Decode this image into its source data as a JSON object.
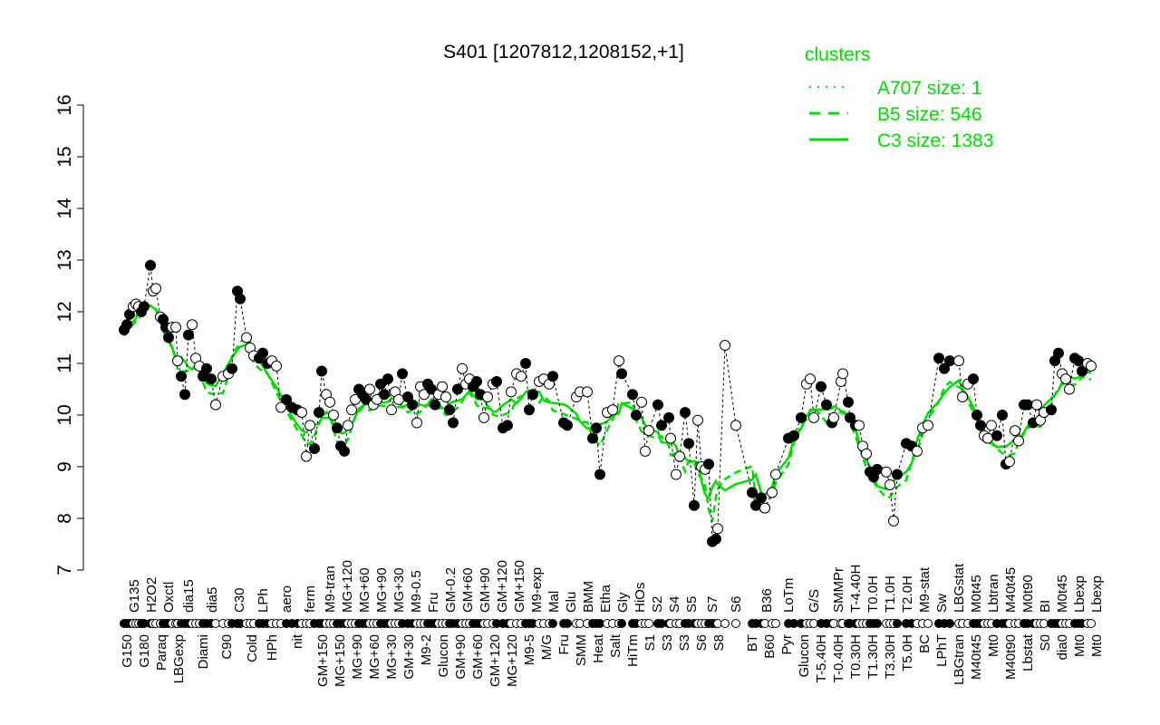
{
  "chart_data": {
    "type": "scatter",
    "title": "S401 [1207812,1208152,+1]",
    "xlabel": "",
    "ylabel": "",
    "ylim": [
      7,
      16
    ],
    "yticks": [
      7,
      8,
      9,
      10,
      11,
      12,
      13,
      14,
      15,
      16
    ],
    "legend": {
      "title": "clusters",
      "placement": "top-right",
      "entries": [
        {
          "label": "A707 size: 1",
          "style": "dotted"
        },
        {
          "label": "B5 size: 546",
          "style": "dashed"
        },
        {
          "label": "C3 size: 1383",
          "style": "solid"
        }
      ]
    },
    "line_color": "#00dd00",
    "xlim": [
      0,
      1080
    ],
    "points": [
      [
        7,
        11.65
      ],
      [
        10,
        11.75
      ],
      [
        13,
        11.95
      ],
      [
        17,
        12.1
      ],
      [
        20,
        12.15
      ],
      [
        23,
        12.1
      ],
      [
        26,
        12.0
      ],
      [
        29,
        12.1
      ],
      [
        36,
        12.9
      ],
      [
        39,
        12.4
      ],
      [
        42,
        12.45
      ],
      [
        47,
        11.9
      ],
      [
        50,
        11.85
      ],
      [
        53,
        11.7
      ],
      [
        56,
        11.5
      ],
      [
        60,
        11.7
      ],
      [
        64,
        11.7
      ],
      [
        66,
        11.05
      ],
      [
        70,
        10.75
      ],
      [
        74,
        10.4
      ],
      [
        78,
        11.55
      ],
      [
        82,
        11.75
      ],
      [
        86,
        11.1
      ],
      [
        90,
        10.95
      ],
      [
        94,
        10.75
      ],
      [
        98,
        10.9
      ],
      [
        103,
        10.7
      ],
      [
        108,
        10.2
      ],
      [
        116,
        10.75
      ],
      [
        122,
        10.8
      ],
      [
        126,
        10.9
      ],
      [
        132,
        12.4
      ],
      [
        135,
        12.25
      ],
      [
        142,
        11.5
      ],
      [
        146,
        11.3
      ],
      [
        150,
        11.15
      ],
      [
        156,
        11.1
      ],
      [
        160,
        11.2
      ],
      [
        165,
        11.0
      ],
      [
        170,
        11.05
      ],
      [
        175,
        10.95
      ],
      [
        180,
        10.15
      ],
      [
        186,
        10.3
      ],
      [
        192,
        10.15
      ],
      [
        198,
        10.1
      ],
      [
        203,
        10.05
      ],
      [
        208,
        9.2
      ],
      [
        212,
        9.8
      ],
      [
        217,
        9.35
      ],
      [
        222,
        10.05
      ],
      [
        225,
        10.85
      ],
      [
        230,
        10.4
      ],
      [
        234,
        10.25
      ],
      [
        238,
        10.0
      ],
      [
        242,
        9.75
      ],
      [
        246,
        9.4
      ],
      [
        250,
        9.3
      ],
      [
        254,
        9.8
      ],
      [
        258,
        10.1
      ],
      [
        262,
        10.3
      ],
      [
        266,
        10.5
      ],
      [
        270,
        10.4
      ],
      [
        274,
        10.3
      ],
      [
        278,
        10.5
      ],
      [
        282,
        10.2
      ],
      [
        286,
        10.3
      ],
      [
        290,
        10.6
      ],
      [
        294,
        10.4
      ],
      [
        298,
        10.7
      ],
      [
        302,
        10.1
      ],
      [
        306,
        10.45
      ],
      [
        310,
        10.3
      ],
      [
        314,
        10.8
      ],
      [
        320,
        10.35
      ],
      [
        325,
        10.2
      ],
      [
        330,
        9.85
      ],
      [
        334,
        10.55
      ],
      [
        338,
        10.4
      ],
      [
        342,
        10.6
      ],
      [
        346,
        10.5
      ],
      [
        350,
        10.2
      ],
      [
        354,
        10.4
      ],
      [
        358,
        10.55
      ],
      [
        362,
        10.35
      ],
      [
        366,
        10.1
      ],
      [
        370,
        9.85
      ],
      [
        375,
        10.5
      ],
      [
        380,
        10.9
      ],
      [
        384,
        10.6
      ],
      [
        388,
        10.7
      ],
      [
        392,
        10.55
      ],
      [
        396,
        10.65
      ],
      [
        400,
        10.4
      ],
      [
        404,
        9.95
      ],
      [
        408,
        10.35
      ],
      [
        414,
        10.6
      ],
      [
        418,
        10.65
      ],
      [
        425,
        9.75
      ],
      [
        430,
        9.8
      ],
      [
        434,
        10.45
      ],
      [
        440,
        10.8
      ],
      [
        445,
        10.75
      ],
      [
        450,
        11.0
      ],
      [
        454,
        10.1
      ],
      [
        458,
        10.4
      ],
      [
        465,
        10.65
      ],
      [
        470,
        10.7
      ],
      [
        476,
        10.6
      ],
      [
        480,
        10.75
      ],
      [
        492,
        9.85
      ],
      [
        496,
        9.8
      ],
      [
        506,
        10.35
      ],
      [
        510,
        10.45
      ],
      [
        518,
        10.45
      ],
      [
        524,
        9.55
      ],
      [
        528,
        9.75
      ],
      [
        532,
        8.85
      ],
      [
        540,
        10.05
      ],
      [
        546,
        10.1
      ],
      [
        553,
        11.05
      ],
      [
        556,
        10.8
      ],
      [
        568,
        10.4
      ],
      [
        572,
        10.0
      ],
      [
        578,
        10.25
      ],
      [
        582,
        9.3
      ],
      [
        586,
        9.7
      ],
      [
        596,
        10.2
      ],
      [
        600,
        9.8
      ],
      [
        608,
        9.95
      ],
      [
        610,
        9.55
      ],
      [
        616,
        8.85
      ],
      [
        620,
        9.2
      ],
      [
        626,
        10.05
      ],
      [
        630,
        9.45
      ],
      [
        636,
        8.25
      ],
      [
        640,
        9.9
      ],
      [
        644,
        9.0
      ],
      [
        648,
        8.95
      ],
      [
        652,
        9.05
      ],
      [
        656,
        7.55
      ],
      [
        660,
        7.6
      ],
      [
        662,
        7.8
      ],
      [
        670,
        11.35
      ],
      [
        682,
        9.8
      ],
      [
        700,
        8.5
      ],
      [
        704,
        8.25
      ],
      [
        710,
        8.4
      ],
      [
        714,
        8.2
      ],
      [
        722,
        8.5
      ],
      [
        726,
        8.85
      ],
      [
        740,
        9.55
      ],
      [
        746,
        9.6
      ],
      [
        754,
        9.95
      ],
      [
        760,
        10.6
      ],
      [
        764,
        10.7
      ],
      [
        768,
        9.95
      ],
      [
        776,
        10.55
      ],
      [
        782,
        10.2
      ],
      [
        788,
        9.85
      ],
      [
        790,
        9.95
      ],
      [
        798,
        10.65
      ],
      [
        800,
        10.8
      ],
      [
        806,
        10.25
      ],
      [
        808,
        9.95
      ],
      [
        814,
        9.8
      ],
      [
        818,
        9.8
      ],
      [
        822,
        9.4
      ],
      [
        826,
        9.25
      ],
      [
        830,
        8.9
      ],
      [
        834,
        8.8
      ],
      [
        838,
        8.95
      ],
      [
        848,
        8.9
      ],
      [
        852,
        8.65
      ],
      [
        856,
        7.95
      ],
      [
        860,
        8.85
      ],
      [
        870,
        9.45
      ],
      [
        876,
        9.4
      ],
      [
        882,
        9.3
      ],
      [
        888,
        9.75
      ],
      [
        894,
        9.8
      ],
      [
        906,
        11.1
      ],
      [
        912,
        10.9
      ],
      [
        918,
        11.05
      ],
      [
        928,
        11.05
      ],
      [
        932,
        10.35
      ],
      [
        938,
        10.6
      ],
      [
        944,
        10.7
      ],
      [
        948,
        10.0
      ],
      [
        952,
        9.8
      ],
      [
        956,
        9.6
      ],
      [
        960,
        9.55
      ],
      [
        964,
        9.8
      ],
      [
        970,
        9.6
      ],
      [
        976,
        10.0
      ],
      [
        980,
        9.05
      ],
      [
        984,
        9.1
      ],
      [
        990,
        9.7
      ],
      [
        994,
        9.5
      ],
      [
        1000,
        10.2
      ],
      [
        1004,
        10.2
      ],
      [
        1010,
        9.85
      ],
      [
        1014,
        10.2
      ],
      [
        1018,
        9.9
      ],
      [
        1022,
        10.05
      ],
      [
        1030,
        10.1
      ],
      [
        1034,
        11.05
      ],
      [
        1038,
        11.2
      ],
      [
        1042,
        10.8
      ],
      [
        1046,
        10.7
      ],
      [
        1050,
        10.5
      ],
      [
        1056,
        11.1
      ],
      [
        1060,
        11.05
      ],
      [
        1064,
        10.85
      ],
      [
        1070,
        11.0
      ],
      [
        1074,
        10.95
      ]
    ],
    "labels_top": [
      [
        "G135",
        18
      ],
      [
        "H2O2",
        36
      ],
      [
        "Oxctl",
        55
      ],
      [
        "dia15",
        78
      ],
      [
        "dia5",
        104
      ],
      [
        "C30",
        134
      ],
      [
        "LPh",
        160
      ],
      [
        "aero",
        186
      ],
      [
        "ferm",
        212
      ],
      [
        "M9-tran",
        234
      ],
      [
        "MG+120",
        246
      ],
      [
        "MG+60",
        262
      ],
      [
        "MG+90",
        272
      ],
      [
        "MG+30",
        282
      ],
      [
        "M9-0.5",
        296
      ],
      [
        "Fru",
        308
      ],
      [
        "GM-0.2",
        324
      ],
      [
        "GM+60",
        336
      ],
      [
        "GM+90",
        348
      ],
      [
        "GM+120",
        360
      ],
      [
        "GM+150",
        378
      ],
      [
        "M9-exp",
        400
      ],
      [
        "Mal",
        428
      ],
      [
        "Glu",
        450
      ],
      [
        "BMM",
        466
      ],
      [
        "Etha",
        492
      ],
      [
        "Gly",
        522
      ],
      [
        "HiOs",
        550
      ],
      [
        "S2",
        580
      ],
      [
        "S4",
        608
      ],
      [
        "S5",
        626
      ],
      [
        "S7",
        656
      ],
      [
        "S6",
        682
      ],
      [
        "B36",
        716
      ],
      [
        "LoTm",
        740
      ],
      [
        "G/S",
        768
      ],
      [
        "SMMPr",
        795
      ],
      [
        "T-4.40H",
        808
      ],
      [
        "T0.0H",
        820
      ],
      [
        "T1.0H",
        832
      ],
      [
        "T2.0H",
        840
      ],
      [
        "M9-stat",
        860
      ],
      [
        "Sw",
        892
      ],
      [
        "LBGstat",
        928
      ],
      [
        "M0t45",
        950
      ],
      [
        "Lbtran",
        960
      ],
      [
        "M40t45",
        970
      ],
      [
        "M0t90",
        1000
      ],
      [
        "BI",
        1030
      ],
      [
        "M0t45",
        1058
      ],
      [
        "Lbexp",
        1068
      ],
      [
        "Lbexp",
        1076
      ]
    ],
    "labels_bottom": [
      [
        "G150",
        10
      ],
      [
        "G180",
        23
      ],
      [
        "Paraq",
        48
      ],
      [
        "LBGexp",
        62
      ],
      [
        "Diami",
        94
      ],
      [
        "C90",
        120
      ],
      [
        "Cold",
        148
      ],
      [
        "HPh",
        170
      ],
      [
        "nit",
        198
      ],
      [
        "GM+150",
        226
      ],
      [
        "MG+150",
        240
      ],
      [
        "MG+90",
        256
      ],
      [
        "MG+60",
        268
      ],
      [
        "MG+30",
        280
      ],
      [
        "GM+30",
        292
      ],
      [
        "M9-2",
        304
      ],
      [
        "Glucon",
        318
      ],
      [
        "GM+90",
        330
      ],
      [
        "GM+60",
        342
      ],
      [
        "GM+120",
        354
      ],
      [
        "MG+120",
        366
      ],
      [
        "M9-5",
        380
      ],
      [
        "M/G",
        416
      ],
      [
        "Fru",
        442
      ],
      [
        "SMM",
        458
      ],
      [
        "Heat",
        474
      ],
      [
        "Salt",
        506
      ],
      [
        "HiTm",
        538
      ],
      [
        "S1",
        568
      ],
      [
        "S3",
        596
      ],
      [
        "S3",
        614
      ],
      [
        "S6",
        632
      ],
      [
        "S8",
        660
      ],
      [
        "BT",
        704
      ],
      [
        "B60",
        722
      ],
      [
        "Pyr",
        754
      ],
      [
        "Glucon",
        780
      ],
      [
        "T-5.40H",
        795
      ],
      [
        "T-0.40H",
        805
      ],
      [
        "T0.30H",
        818
      ],
      [
        "T1.30H",
        826
      ],
      [
        "T3.30H",
        834
      ],
      [
        "T5.0H",
        842
      ],
      [
        "BC",
        876
      ],
      [
        "LPhT",
        910
      ],
      [
        "LBGtran",
        938
      ],
      [
        "M40t45",
        952
      ],
      [
        "Mt0",
        966
      ],
      [
        "M40t90",
        978
      ],
      [
        "Lbstat",
        1010
      ],
      [
        "S0",
        1038
      ],
      [
        "dia0",
        1054
      ],
      [
        "Mt0",
        1066
      ],
      [
        "Mt0",
        1074
      ]
    ]
  }
}
